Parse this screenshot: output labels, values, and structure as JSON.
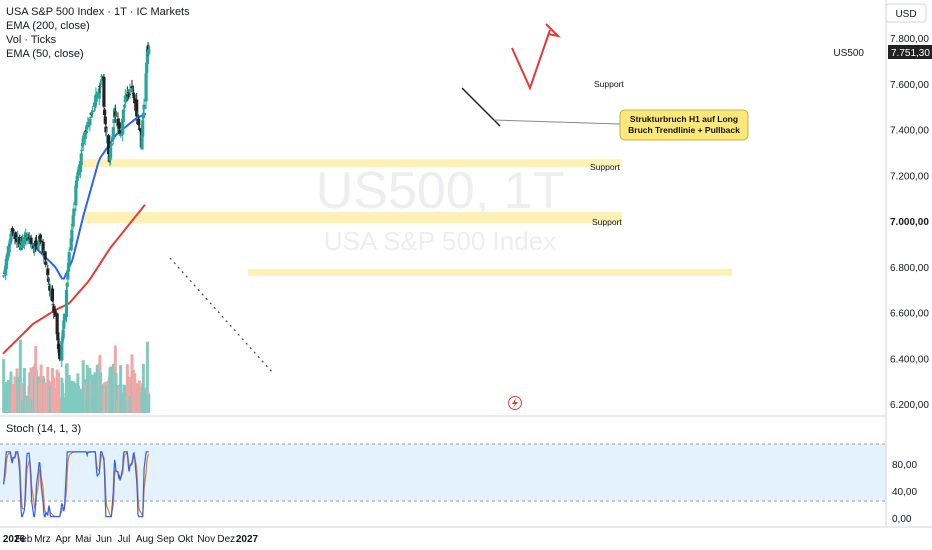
{
  "header": {
    "title": "USA S&P 500 Index · 1T · IC Markets",
    "indicator_1": "EMA (200, close)",
    "indicator_2": "Vol · Ticks",
    "indicator_3": "EMA (50, close)",
    "currency_button": "USD",
    "symbol_label": "US500"
  },
  "watermark": {
    "symbol": "US500, 1T",
    "name": "USA S&P 500 Index"
  },
  "annotations": {
    "callout_line_1": "Strukturbruch H1 auf Long",
    "callout_line_2": "Bruch Trendlinie + Pullback",
    "support_labels": [
      "Support",
      "Support",
      "Support"
    ]
  },
  "colors": {
    "up_candle": "#26a69a",
    "down_candle": "#222222",
    "ema_50": "#2962ff",
    "ema_200": "#e53935",
    "support_zone": "#fdf2b5",
    "callout_fill": "#fbe77a",
    "projection": "#e53935",
    "stoch_k": "#2962ff",
    "stoch_d": "#f57c00",
    "stoch_band": "#e3f2fd",
    "vol_up": "#7fcbc1",
    "vol_down": "#f4a6a6",
    "price_badge": "#222222"
  },
  "chart_data": {
    "type": "candlestick",
    "symbol": "US500",
    "timeframe": "1T",
    "x_tick_labels": [
      "2026",
      "Feb",
      "Mrz",
      "Apr",
      "Mai",
      "Jun",
      "Jul",
      "Aug",
      "Sep",
      "Okt",
      "Nov",
      "Dez",
      "2027"
    ],
    "y_tick_labels": [
      "7.800,00",
      "7.600,00",
      "7.400,00",
      "7.200,00",
      "7.000,00",
      "6.800,00",
      "6.600,00",
      "6.400,00",
      "6.200,00"
    ],
    "y_range": [
      6180,
      7860
    ],
    "last_price": "7.751,30",
    "last_price_value": 7751.3,
    "price_path_waypoints": [
      {
        "date": "2026-01-02",
        "close": 6760
      },
      {
        "date": "2026-01-14",
        "close": 6960
      },
      {
        "date": "2026-01-28",
        "close": 6890
      },
      {
        "date": "2026-02-06",
        "close": 6950
      },
      {
        "date": "2026-02-16",
        "close": 6880
      },
      {
        "date": "2026-02-26",
        "close": 6920
      },
      {
        "date": "2026-03-05",
        "close": 6830
      },
      {
        "date": "2026-03-12",
        "close": 6700
      },
      {
        "date": "2026-03-20",
        "close": 6580
      },
      {
        "date": "2026-03-27",
        "close": 6400
      },
      {
        "date": "2026-04-02",
        "close": 6560
      },
      {
        "date": "2026-04-10",
        "close": 6850
      },
      {
        "date": "2026-04-20",
        "close": 7150
      },
      {
        "date": "2026-05-01",
        "close": 7350
      },
      {
        "date": "2026-05-12",
        "close": 7470
      },
      {
        "date": "2026-05-22",
        "close": 7560
      },
      {
        "date": "2026-05-29",
        "close": 7620
      },
      {
        "date": "2026-06-04",
        "close": 7400
      },
      {
        "date": "2026-06-09",
        "close": 7260
      },
      {
        "date": "2026-06-17",
        "close": 7480
      },
      {
        "date": "2026-06-26",
        "close": 7380
      },
      {
        "date": "2026-07-03",
        "close": 7540
      },
      {
        "date": "2026-07-13",
        "close": 7580
      },
      {
        "date": "2026-07-22",
        "close": 7440
      },
      {
        "date": "2026-07-27",
        "close": 7320
      },
      {
        "date": "2026-07-30",
        "close": 7480
      },
      {
        "date": "2026-08-03",
        "close": 7640
      },
      {
        "date": "2026-08-05",
        "close": 7760
      },
      {
        "date": "2026-08-07",
        "close": 7751
      }
    ],
    "ema_50_waypoints": [
      {
        "date": "2026-02-20",
        "value": 6880
      },
      {
        "date": "2026-03-20",
        "value": 6800
      },
      {
        "date": "2026-04-01",
        "value": 6740
      },
      {
        "date": "2026-04-15",
        "value": 6830
      },
      {
        "date": "2026-05-01",
        "value": 7020
      },
      {
        "date": "2026-05-25",
        "value": 7270
      },
      {
        "date": "2026-06-20",
        "value": 7380
      },
      {
        "date": "2026-07-20",
        "value": 7450
      },
      {
        "date": "2026-08-04",
        "value": 7470
      }
    ],
    "ema_200_waypoints": [
      {
        "date": "2026-01-01",
        "value": 6420
      },
      {
        "date": "2026-02-15",
        "value": 6550
      },
      {
        "date": "2026-03-20",
        "value": 6610
      },
      {
        "date": "2026-04-10",
        "value": 6640
      },
      {
        "date": "2026-05-10",
        "value": 6740
      },
      {
        "date": "2026-06-10",
        "value": 6880
      },
      {
        "date": "2026-07-10",
        "value": 6990
      },
      {
        "date": "2026-08-04",
        "value": 7080
      }
    ],
    "support_zones": [
      {
        "low": 7235,
        "high": 7270,
        "label": "Support"
      },
      {
        "low": 6990,
        "high": 7040,
        "label": "Support"
      },
      {
        "low": 6760,
        "high": 6790,
        "label": ""
      }
    ],
    "support_level_labeled": {
      "value": 7620,
      "label": "Support"
    },
    "stochastic": {
      "label": "Stoch (14, 1, 3)",
      "y_tick_labels": [
        "80,00",
        "40,00",
        "0,00"
      ],
      "range": [
        0,
        100
      ],
      "levels": [
        80,
        20
      ]
    },
    "grid": false,
    "legend_position": "top-left"
  }
}
